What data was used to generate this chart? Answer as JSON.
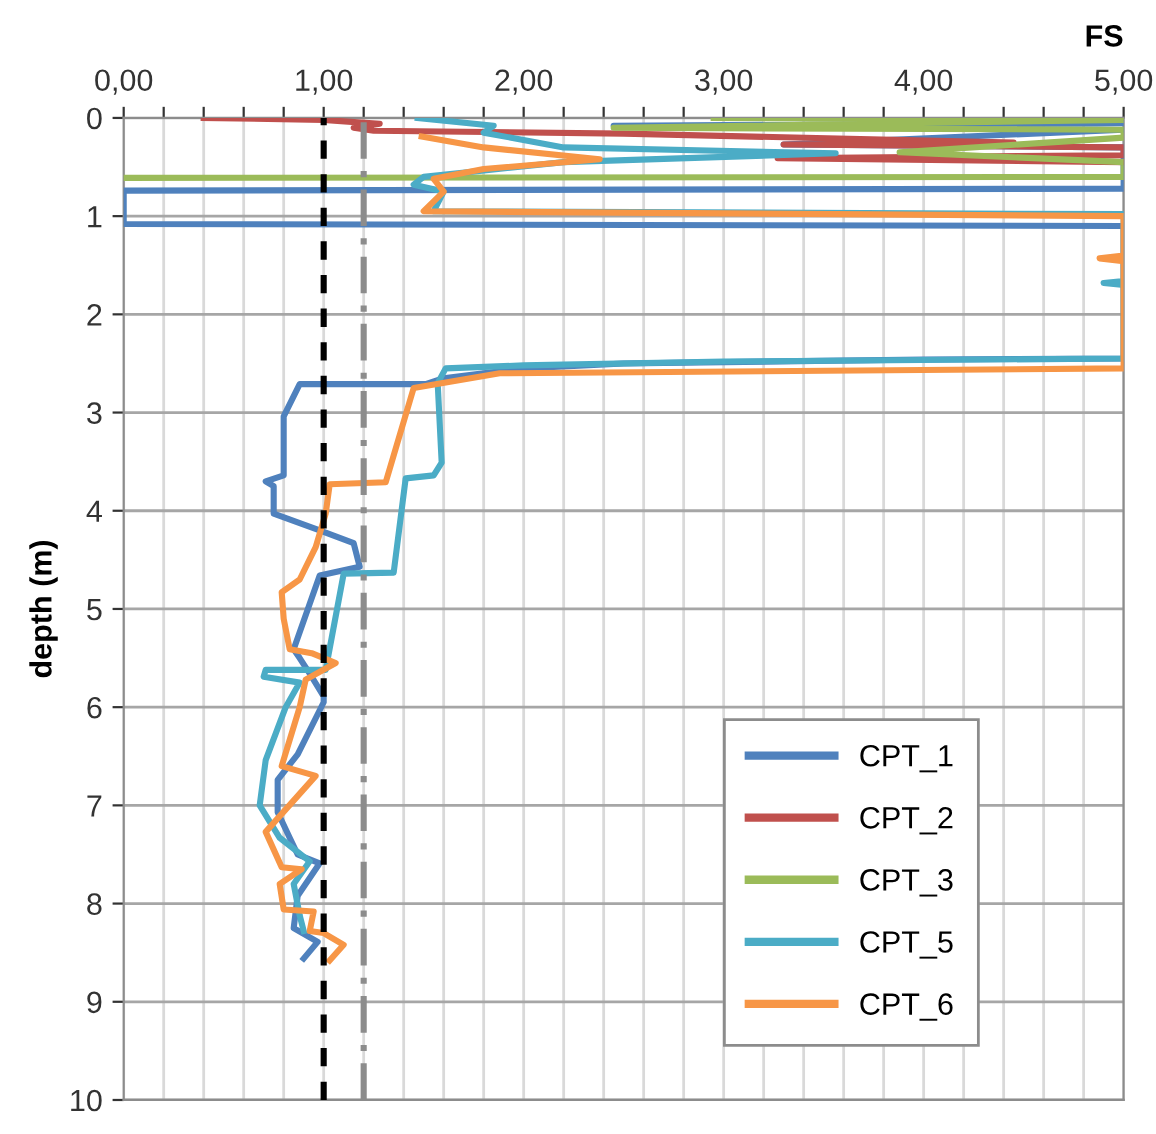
{
  "chart_data": {
    "type": "line",
    "xlabel": "FS",
    "ylabel": "depth (m)",
    "xlim": [
      0,
      5
    ],
    "ylim": [
      10,
      0
    ],
    "xticks": [
      {
        "value": 0,
        "label": "0,00"
      },
      {
        "value": 0.2,
        "label": null
      },
      {
        "value": 0.4,
        "label": null
      },
      {
        "value": 0.6,
        "label": null
      },
      {
        "value": 0.8,
        "label": null
      },
      {
        "value": 1,
        "label": "1,00"
      },
      {
        "value": 1.2,
        "label": null
      },
      {
        "value": 1.4,
        "label": null
      },
      {
        "value": 1.6,
        "label": null
      },
      {
        "value": 1.8,
        "label": null
      },
      {
        "value": 2,
        "label": "2,00"
      },
      {
        "value": 2.2,
        "label": null
      },
      {
        "value": 2.4,
        "label": null
      },
      {
        "value": 2.6,
        "label": null
      },
      {
        "value": 2.8,
        "label": null
      },
      {
        "value": 3,
        "label": "3,00"
      },
      {
        "value": 3.2,
        "label": null
      },
      {
        "value": 3.4,
        "label": null
      },
      {
        "value": 3.6,
        "label": null
      },
      {
        "value": 3.8,
        "label": null
      },
      {
        "value": 4,
        "label": "4,00"
      },
      {
        "value": 4.2,
        "label": null
      },
      {
        "value": 4.4,
        "label": null
      },
      {
        "value": 4.6,
        "label": null
      },
      {
        "value": 4.8,
        "label": null
      },
      {
        "value": 5,
        "label": "5,00"
      }
    ],
    "yticks": [
      0,
      1,
      2,
      3,
      4,
      5,
      6,
      7,
      8,
      9,
      10
    ],
    "grid": true,
    "legend": "bottom right",
    "marker": "none",
    "line_style": "solid",
    "ref_lines": [
      {
        "axis": "x",
        "value": 1,
        "label": null,
        "color": "#000000",
        "line_style": "dashed"
      },
      {
        "axis": "x",
        "value": 1.2,
        "label": null,
        "color": "#8c8c8c",
        "line_style": "dashdot"
      }
    ],
    "series": [
      {
        "name": "CPT_1",
        "color": "#4f81bd",
        "x": [
          5,
          2.45,
          5,
          3.3,
          5,
          5,
          0,
          0,
          5,
          5,
          4,
          2.5,
          2.0,
          1.8,
          1.6,
          1.51,
          0.88,
          0.8,
          0.8,
          0.71,
          0.75,
          0.75,
          0.98,
          1.15,
          1.18,
          0.98,
          0.85,
          0.88,
          0.94,
          1.0,
          1.0,
          0.87,
          0.77,
          0.77,
          0.83,
          0.87,
          0.98,
          0.87,
          0.85,
          0.97,
          0.9
        ],
        "values": [
          0.05,
          0.08,
          0.12,
          0.27,
          0.3,
          0.72,
          0.74,
          1.08,
          1.1,
          2.45,
          2.46,
          2.5,
          2.55,
          2.6,
          2.65,
          2.71,
          2.71,
          3.04,
          3.64,
          3.7,
          3.75,
          4.03,
          4.2,
          4.33,
          4.57,
          4.66,
          5.41,
          5.5,
          5.69,
          5.89,
          5.95,
          6.48,
          6.74,
          7.07,
          7.33,
          7.5,
          7.59,
          7.92,
          8.25,
          8.39,
          8.56
        ]
      },
      {
        "name": "CPT_2",
        "color": "#c0504d",
        "x": [
          0.4,
          1.0,
          1.28,
          1.15,
          1.25,
          2.5,
          4.45,
          3.3,
          5,
          5,
          3.27,
          5
        ],
        "values": [
          0.0,
          0.02,
          0.06,
          0.1,
          0.13,
          0.16,
          0.25,
          0.27,
          0.3,
          0.38,
          0.41,
          0.45
        ]
      },
      {
        "name": "CPT_3",
        "color": "#9bbb59",
        "x": [
          2.95,
          5,
          2.45,
          5,
          5,
          3.88,
          5,
          5,
          0
        ],
        "values": [
          0.0,
          0.02,
          0.1,
          0.12,
          0.2,
          0.35,
          0.45,
          0.6,
          0.61
        ]
      },
      {
        "name": "CPT_5",
        "color": "#4bacc6",
        "x": [
          1.47,
          1.85,
          1.8,
          2.2,
          3.56,
          2.2,
          1.5,
          1.45,
          1.6,
          1.55,
          5,
          5,
          4.9,
          5,
          5,
          3,
          2.0,
          1.61,
          1.57,
          1.59,
          1.55,
          1.41,
          1.35,
          1.1,
          1.01,
          0.71,
          0.7,
          0.88,
          0.81,
          0.71,
          0.68,
          0.78,
          0.93,
          0.85,
          0.88,
          0.9
        ],
        "values": [
          0.0,
          0.08,
          0.15,
          0.3,
          0.36,
          0.45,
          0.6,
          0.68,
          0.75,
          0.95,
          0.98,
          1.66,
          1.68,
          1.7,
          2.45,
          2.48,
          2.52,
          2.55,
          2.7,
          3.51,
          3.64,
          3.67,
          4.63,
          4.64,
          5.62,
          5.62,
          5.69,
          5.75,
          6.0,
          6.54,
          7.0,
          7.33,
          7.57,
          7.8,
          8.12,
          8.28
        ]
      },
      {
        "name": "CPT_6",
        "color": "#f79646",
        "x": [
          1.49,
          1.8,
          2.38,
          1.8,
          1.55,
          1.6,
          1.5,
          5,
          5,
          4.88,
          5,
          5,
          1.88,
          1.45,
          1.31,
          1.03,
          1.01,
          0.96,
          0.88,
          0.79,
          0.8,
          0.83,
          0.94,
          1.06,
          0.91,
          0.88,
          0.79,
          0.96,
          0.71,
          0.79,
          0.89,
          0.78,
          0.8,
          0.95,
          0.93,
          1.0,
          1.1,
          1.03
        ],
        "values": [
          0.19,
          0.3,
          0.42,
          0.52,
          0.62,
          0.75,
          0.95,
          1.0,
          1.4,
          1.43,
          1.46,
          2.55,
          2.6,
          2.75,
          3.71,
          3.73,
          4.03,
          4.37,
          4.7,
          4.83,
          5.1,
          5.41,
          5.45,
          5.55,
          5.72,
          6.0,
          6.6,
          6.7,
          7.27,
          7.63,
          7.65,
          7.8,
          8.06,
          8.08,
          8.28,
          8.3,
          8.42,
          8.58
        ]
      }
    ]
  }
}
